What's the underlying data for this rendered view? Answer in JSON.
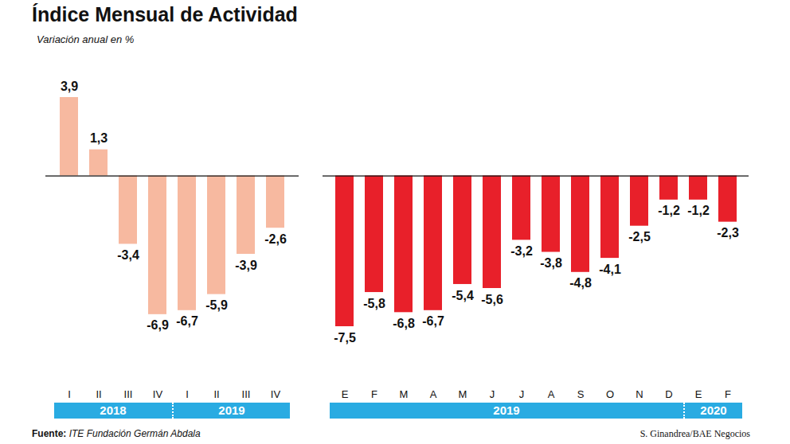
{
  "title": "Índice Mensual de Actividad",
  "subtitle": "Variación anual en %",
  "source": "Fuente: ITE Fundación Germán Abdala",
  "credit": "S. Ginandrea/BAE Negocios",
  "chart_data": [
    {
      "type": "bar",
      "categories": [
        "I",
        "II",
        "III",
        "IV",
        "I",
        "II",
        "III",
        "IV"
      ],
      "values": [
        3.9,
        1.3,
        -3.4,
        -6.9,
        -6.7,
        -5.9,
        -3.9,
        -2.6
      ],
      "value_labels": [
        "3,9",
        "1,3",
        "-3,4",
        "-6,9",
        "-6,7",
        "-5,9",
        "-3,9",
        "-2,6"
      ],
      "groups": [
        {
          "label": "2018",
          "count": 4
        },
        {
          "label": "2019",
          "count": 4
        }
      ],
      "color": "#f7b9a0",
      "ylim": [
        -7.5,
        3.9
      ],
      "yticks": [
        0
      ],
      "tick_labels": "x",
      "data_labels": true
    },
    {
      "type": "bar",
      "categories": [
        "E",
        "F",
        "M",
        "A",
        "M",
        "J",
        "J",
        "A",
        "S",
        "O",
        "N",
        "D",
        "E",
        "F"
      ],
      "values": [
        -7.5,
        -5.8,
        -6.8,
        -6.7,
        -5.4,
        -5.6,
        -3.2,
        -3.8,
        -4.8,
        -4.1,
        -2.5,
        -1.2,
        -1.2,
        -2.3
      ],
      "value_labels": [
        "-7,5",
        "-5,8",
        "-6,8",
        "-6,7",
        "-5,4",
        "-5,6",
        "-3,2",
        "-3,8",
        "-4,8",
        "-4,1",
        "-2,5",
        "-1,2",
        "-1,2",
        "-2,3"
      ],
      "groups": [
        {
          "label": "2019",
          "count": 12
        },
        {
          "label": "2020",
          "count": 2
        }
      ],
      "color": "#e8202a",
      "ylim": [
        -7.5,
        3.9
      ],
      "yticks": [
        0
      ],
      "tick_labels": "x",
      "data_labels": true
    }
  ]
}
